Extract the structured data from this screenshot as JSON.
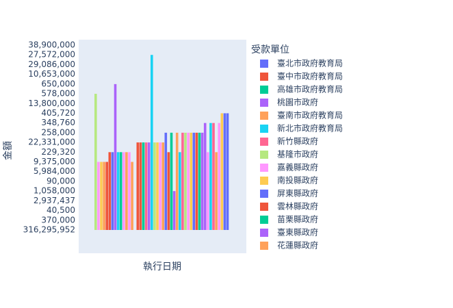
{
  "chart_data": {
    "type": "bar",
    "xlabel": "執行日期",
    "ylabel": "金額",
    "legend_title": "受款單位",
    "ycategories": [
      "316,295,952",
      "370,000",
      "40,500",
      "2,937,437",
      "1,058,000",
      "90,000",
      "5,984,000",
      "9,375,000",
      "229,320",
      "22,331,000",
      "258,000",
      "348,760",
      "405,720",
      "13,800,000",
      "578,000",
      "650,000",
      "10,653,000",
      "29,086,000",
      "27,572,000",
      "38,900,000"
    ],
    "categories": [
      null,
      null,
      null,
      null,
      null,
      null,
      null,
      null,
      null,
      null,
      null,
      null,
      null,
      null,
      null,
      null,
      null,
      null,
      null,
      null,
      null,
      null,
      null,
      null,
      null,
      null,
      null,
      null,
      null,
      null,
      null,
      null,
      null,
      null,
      null,
      null,
      null,
      null,
      null,
      null,
      null,
      null,
      null,
      null,
      null,
      null,
      null,
      null
    ],
    "series": [
      {
        "name": "臺北市政府教育局",
        "color": "#636efa",
        "values": [
          null,
          null,
          null,
          null,
          null,
          null,
          null,
          null,
          null,
          null,
          null,
          null,
          null,
          null,
          "316,295,952",
          null,
          null,
          null,
          null,
          null,
          null,
          null,
          null,
          null,
          null,
          "258,000",
          null,
          null,
          null,
          null,
          null,
          null,
          null,
          null,
          null,
          null,
          null,
          null,
          null,
          null,
          null,
          null,
          null,
          null,
          null,
          null,
          null,
          "405,720"
        ]
      },
      {
        "name": "臺中市政府教育局",
        "color": "#EF553B",
        "values": [
          null,
          null,
          null,
          null,
          "9,375,000",
          null,
          null,
          null,
          null,
          null,
          null,
          null,
          null,
          null,
          null,
          "22,331,000",
          null,
          null,
          null,
          null,
          null,
          null,
          null,
          null,
          null,
          null,
          "229,320",
          null,
          null,
          null,
          null,
          null,
          null,
          null,
          null,
          null,
          null,
          null,
          null,
          null,
          null,
          null,
          null,
          null,
          null,
          null,
          null,
          null
        ]
      },
      {
        "name": "高雄市政府教育局",
        "color": "#00cc96",
        "values": [
          null,
          null,
          null,
          null,
          null,
          null,
          null,
          null,
          null,
          null,
          null,
          null,
          null,
          null,
          null,
          null,
          null,
          "22,331,000",
          null,
          null,
          null,
          null,
          null,
          null,
          null,
          null,
          null,
          "258,000",
          null,
          null,
          null,
          null,
          null,
          null,
          null,
          null,
          null,
          null,
          null,
          null,
          null,
          null,
          null,
          null,
          null,
          null,
          null,
          null
        ]
      },
      {
        "name": "桃園市政府",
        "color": "#ab63fa",
        "values": [
          null,
          null,
          null,
          null,
          null,
          null,
          null,
          "650,000",
          null,
          null,
          null,
          null,
          null,
          null,
          null,
          null,
          null,
          null,
          null,
          null,
          null,
          null,
          null,
          null,
          null,
          null,
          null,
          null,
          "1,058,000",
          null,
          null,
          null,
          null,
          null,
          null,
          null,
          null,
          null,
          null,
          "348,760",
          null,
          null,
          null,
          null,
          null,
          null,
          null,
          null
        ]
      },
      {
        "name": "臺南市政府教育局",
        "color": "#FFA15A",
        "values": [
          null,
          null,
          null,
          "9,375,000",
          null,
          null,
          null,
          null,
          null,
          null,
          null,
          "229,320",
          null,
          null,
          null,
          null,
          null,
          null,
          null,
          null,
          null,
          null,
          null,
          null,
          "22,331,000",
          null,
          null,
          null,
          null,
          "258,000",
          null,
          null,
          null,
          null,
          null,
          null,
          null,
          null,
          null,
          null,
          null,
          null,
          null,
          null,
          null,
          null,
          null,
          null
        ]
      },
      {
        "name": "新北市政府教育局",
        "color": "#19d3f3",
        "values": [
          null,
          null,
          null,
          null,
          null,
          null,
          null,
          null,
          "229,320",
          null,
          null,
          null,
          null,
          null,
          null,
          null,
          null,
          null,
          null,
          null,
          "27,572,000",
          null,
          null,
          null,
          null,
          null,
          null,
          null,
          null,
          null,
          "229,320",
          null,
          null,
          null,
          null,
          null,
          null,
          null,
          null,
          null,
          null,
          "348,760",
          null,
          null,
          null,
          null,
          null,
          null
        ]
      },
      {
        "name": "新竹縣政府",
        "color": "#FF6692",
        "values": [
          null,
          null,
          null,
          null,
          null,
          null,
          null,
          null,
          null,
          null,
          null,
          null,
          null,
          null,
          null,
          null,
          null,
          null,
          "22,331,000",
          null,
          null,
          null,
          null,
          null,
          null,
          null,
          null,
          null,
          null,
          null,
          null,
          "258,000",
          null,
          null,
          null,
          null,
          null,
          null,
          null,
          null,
          null,
          null,
          "348,760",
          null,
          null,
          null,
          null,
          null
        ]
      },
      {
        "name": "基隆市政府",
        "color": "#B6E880",
        "values": [
          "578,000",
          null,
          null,
          null,
          null,
          null,
          null,
          null,
          null,
          null,
          null,
          null,
          null,
          null,
          null,
          null,
          null,
          null,
          null,
          null,
          null,
          "22,331,000",
          null,
          null,
          null,
          null,
          null,
          null,
          null,
          null,
          null,
          null,
          "258,000",
          null,
          null,
          null,
          null,
          null,
          null,
          null,
          null,
          null,
          null,
          null,
          null,
          null,
          null,
          null
        ]
      },
      {
        "name": "嘉義縣政府",
        "color": "#FF97FF",
        "values": [
          null,
          "9,375,000",
          null,
          null,
          null,
          null,
          null,
          null,
          null,
          null,
          "229,320",
          null,
          "229,320",
          null,
          null,
          null,
          null,
          null,
          null,
          null,
          null,
          null,
          null,
          "22,331,000",
          null,
          null,
          null,
          null,
          null,
          null,
          null,
          null,
          null,
          "258,000",
          null,
          null,
          null,
          null,
          null,
          null,
          "229,320",
          null,
          null,
          null,
          "348,760",
          null,
          null,
          null
        ]
      },
      {
        "name": "南投縣政府",
        "color": "#FECB52",
        "values": [
          null,
          null,
          "9,375,000",
          null,
          null,
          null,
          null,
          null,
          null,
          null,
          null,
          null,
          null,
          null,
          null,
          null,
          null,
          null,
          null,
          null,
          null,
          null,
          "22,331,000",
          null,
          null,
          null,
          null,
          null,
          null,
          null,
          null,
          null,
          null,
          null,
          "258,000",
          null,
          null,
          null,
          null,
          null,
          null,
          null,
          null,
          null,
          null,
          "405,720",
          null,
          null
        ]
      },
      {
        "name": "屏東縣政府",
        "color": "#636efa",
        "values": [
          null,
          null,
          null,
          null,
          null,
          null,
          "229,320",
          null,
          null,
          null,
          null,
          null,
          null,
          null,
          null,
          null,
          null,
          null,
          null,
          null,
          null,
          null,
          null,
          null,
          null,
          null,
          null,
          null,
          null,
          null,
          null,
          null,
          null,
          null,
          null,
          "258,000",
          null,
          null,
          null,
          null,
          null,
          null,
          null,
          null,
          null,
          null,
          "405,720",
          null
        ]
      },
      {
        "name": "雲林縣政府",
        "color": "#EF553B",
        "values": [
          null,
          null,
          null,
          null,
          null,
          "229,320",
          null,
          null,
          null,
          null,
          null,
          null,
          null,
          null,
          null,
          null,
          "22,331,000",
          null,
          null,
          null,
          null,
          null,
          null,
          null,
          null,
          null,
          null,
          null,
          null,
          null,
          null,
          null,
          null,
          null,
          null,
          null,
          "258,000",
          null,
          null,
          null,
          null,
          null,
          null,
          null,
          null,
          null,
          null,
          null
        ]
      },
      {
        "name": "苗栗縣政府",
        "color": "#00cc96",
        "values": [
          null,
          null,
          null,
          null,
          null,
          null,
          null,
          null,
          null,
          "229,320",
          null,
          null,
          null,
          null,
          null,
          null,
          null,
          null,
          null,
          null,
          null,
          null,
          null,
          null,
          null,
          null,
          null,
          null,
          null,
          null,
          null,
          null,
          null,
          null,
          null,
          null,
          null,
          "258,000",
          null,
          null,
          null,
          null,
          null,
          null,
          null,
          null,
          null,
          null
        ]
      },
      {
        "name": "臺東縣政府",
        "color": "#ab63fa",
        "values": [
          null,
          null,
          null,
          null,
          null,
          null,
          null,
          null,
          null,
          null,
          null,
          null,
          null,
          null,
          null,
          null,
          null,
          null,
          null,
          "22,331,000",
          null,
          null,
          null,
          null,
          null,
          null,
          null,
          null,
          null,
          null,
          null,
          null,
          null,
          null,
          null,
          null,
          null,
          null,
          "258,000",
          null,
          null,
          null,
          null,
          null,
          null,
          null,
          null,
          null
        ]
      },
      {
        "name": "花蓮縣政府",
        "color": "#FFA15A",
        "values": [
          null,
          null,
          null,
          null,
          null,
          null,
          null,
          null,
          null,
          null,
          null,
          null,
          null,
          "9,375,000",
          null,
          null,
          null,
          null,
          null,
          null,
          null,
          null,
          null,
          null,
          null,
          null,
          null,
          null,
          null,
          null,
          null,
          null,
          null,
          null,
          null,
          null,
          null,
          null,
          null,
          null,
          null,
          null,
          null,
          "229,320",
          null,
          null,
          null,
          null
        ]
      }
    ]
  }
}
